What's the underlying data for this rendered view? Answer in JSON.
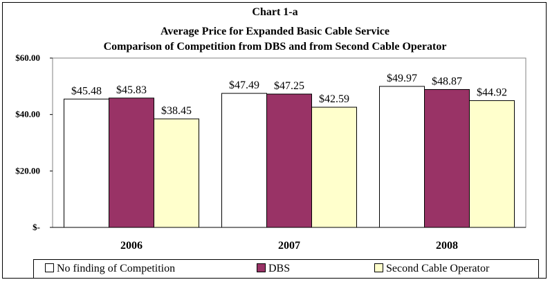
{
  "chart_data": {
    "type": "bar",
    "title": "Chart 1-a",
    "subtitle_lines": [
      "Average Price for Expanded Basic Cable Service",
      "Comparison of Competition from DBS and from Second Cable Operator"
    ],
    "categories": [
      "2006",
      "2007",
      "2008"
    ],
    "series": [
      {
        "name": "No finding of Competition",
        "values": [
          45.48,
          47.49,
          49.97
        ],
        "labels": [
          "$45.48",
          "$47.49",
          "$49.97"
        ],
        "color": "#FFFFFF"
      },
      {
        "name": "DBS",
        "values": [
          45.83,
          47.25,
          48.87
        ],
        "labels": [
          "$45.83",
          "$47.25",
          "$48.87"
        ],
        "color": "#993366"
      },
      {
        "name": "Second Cable Operator",
        "values": [
          38.45,
          42.59,
          44.92
        ],
        "labels": [
          "$38.45",
          "$42.59",
          "$44.92"
        ],
        "color": "#FFFFCC"
      }
    ],
    "ylim": [
      0,
      60
    ],
    "yticks": [
      0,
      20,
      40,
      60
    ],
    "ytick_labels": [
      "$-",
      "$20.00",
      "$40.00",
      "$60.00"
    ],
    "grid": false,
    "legend_position": "bottom"
  }
}
